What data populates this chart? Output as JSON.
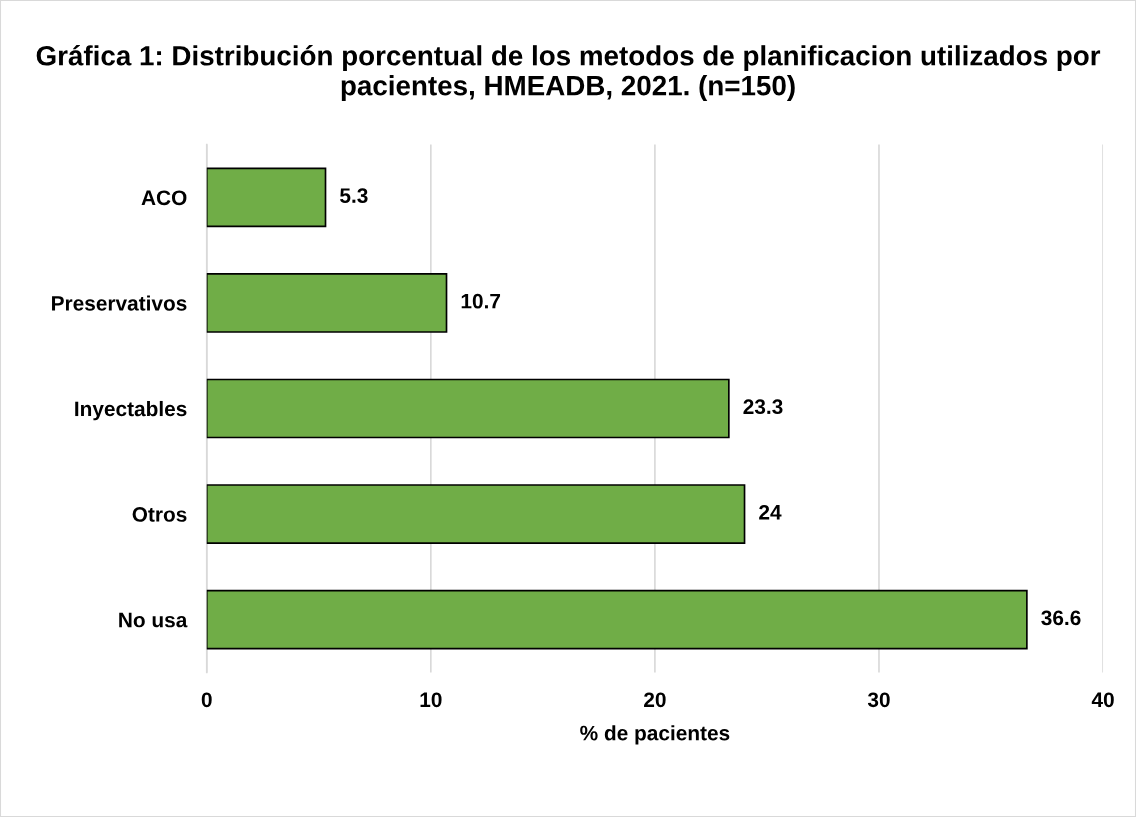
{
  "chart_data": {
    "type": "bar",
    "orientation": "horizontal",
    "title": "Gráfica 1: Distribución porcentual de los metodos de planificacion utilizados por pacientes, HMEADB, 2021. (n=150)",
    "xlabel": "% de pacientes",
    "categories": [
      "ACO",
      "Preservativos",
      "Inyectables",
      "Otros",
      "No usa"
    ],
    "values": [
      5.3,
      10.7,
      23.3,
      24,
      36.6
    ],
    "color": "#70ad47",
    "xlim": [
      0,
      40
    ],
    "xticks": [
      0,
      10,
      20,
      30,
      40
    ],
    "grid": "x",
    "data_labels": true
  }
}
